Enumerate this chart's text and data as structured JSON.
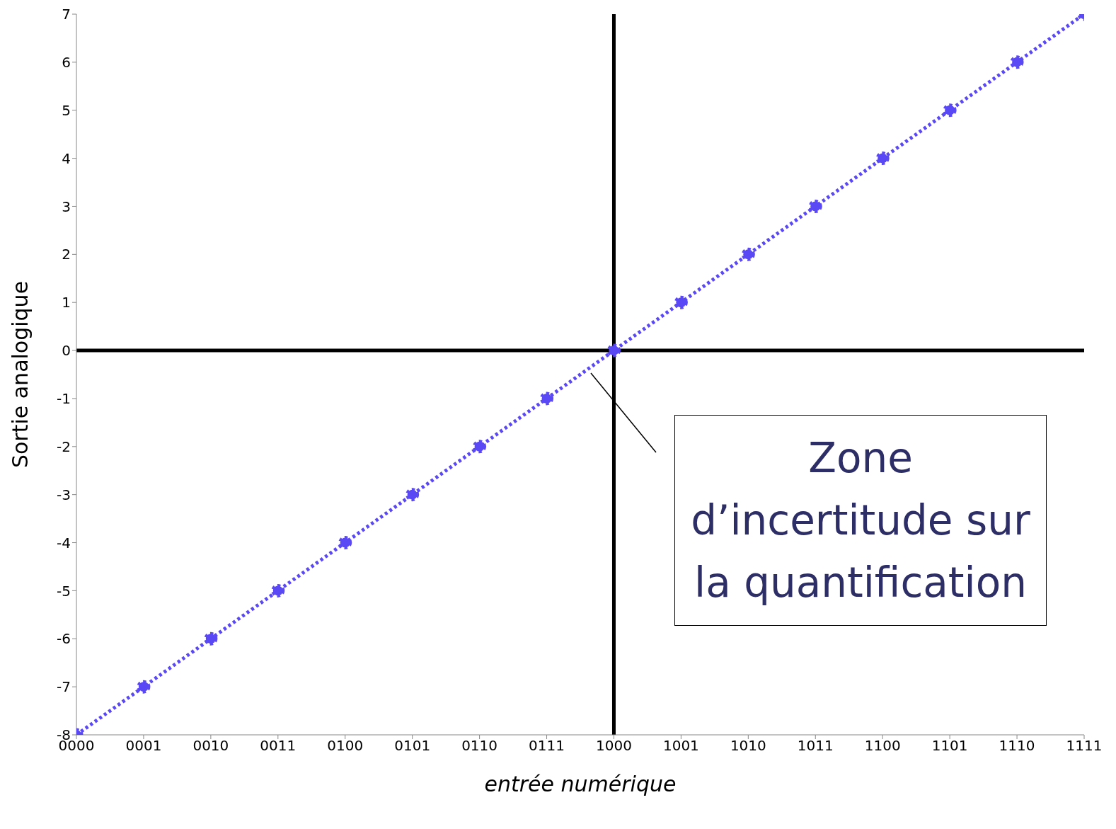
{
  "chart_data": {
    "type": "line",
    "xlabel": "entrée numérique",
    "ylabel": "Sortie analogique",
    "categories": [
      "0000",
      "0001",
      "0010",
      "0011",
      "0100",
      "0101",
      "0110",
      "0111",
      "1000",
      "1001",
      "1010",
      "1011",
      "1100",
      "1101",
      "1110",
      "1111"
    ],
    "series": [
      {
        "color": "#5a48f5",
        "values": [
          -8,
          -7,
          -6,
          -5,
          -4,
          -3,
          -2,
          -1,
          0,
          1,
          2,
          3,
          4,
          5,
          6,
          7
        ]
      }
    ],
    "ylim": [
      -8,
      7
    ],
    "yticks": [
      -8,
      -7,
      -6,
      -5,
      -4,
      -3,
      -2,
      -1,
      0,
      1,
      2,
      3,
      4,
      5,
      6,
      7
    ],
    "marker": "circle",
    "line_style": "dotted",
    "grid": false,
    "legend": false,
    "ref_lines": [
      {
        "axis": "y",
        "value": 0,
        "color": "#000000"
      },
      {
        "axis": "x",
        "value": "1000",
        "color": "#000000"
      }
    ],
    "annotations": [
      "Zone d’incertitude sur la quantification"
    ]
  }
}
